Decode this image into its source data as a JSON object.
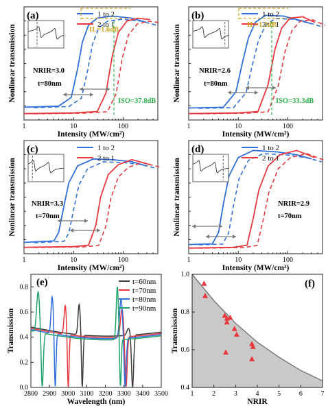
{
  "chart_data": [
    {
      "panel": "(a)",
      "type": "line",
      "xlabel": "Intensity (MW/cm²)",
      "ylabel": "Nonlinear transmission",
      "xscale": "log",
      "xlim": [
        1,
        500
      ],
      "ylim": [
        0,
        0.8
      ],
      "xticks": [
        "1",
        "10",
        "100"
      ],
      "legend": [
        "1 to 2",
        "2 to 1"
      ],
      "legend_position": "top-right",
      "inset": {
        "resonances": [
          0.33,
          0.78
        ],
        "dashed_line": 0.25
      },
      "series": [
        {
          "name": "1 to 2",
          "color": "#2f6fdb",
          "values": [
            [
              1,
              0.09
            ],
            [
              5,
              0.098
            ],
            [
              9,
              0.16
            ],
            [
              12,
              0.36
            ],
            [
              15,
              0.55
            ],
            [
              20,
              0.67
            ],
            [
              30,
              0.72
            ],
            [
              60,
              0.735
            ],
            [
              150,
              0.72
            ],
            [
              300,
              0.69
            ]
          ]
        },
        {
          "name": "2 to 1",
          "color": "#e8383d",
          "values": [
            [
              1,
              0.045
            ],
            [
              10,
              0.05
            ],
            [
              30,
              0.06
            ],
            [
              45,
              0.19
            ],
            [
              60,
              0.45
            ],
            [
              80,
              0.62
            ],
            [
              120,
              0.7
            ],
            [
              200,
              0.72
            ],
            [
              350,
              0.71
            ]
          ]
        }
      ],
      "annotations": [
        "IL=1.6dB",
        "NRIR=3.0",
        "t=80nm",
        "ISO=37.8dB"
      ]
    },
    {
      "panel": "(b)",
      "type": "line",
      "xlabel": "Intensity (MW/cm²)",
      "ylabel": "Nonlinear transmission",
      "xscale": "log",
      "xlim": [
        1,
        500
      ],
      "ylim": [
        0,
        0.8
      ],
      "xticks": [
        "1",
        "10",
        "100"
      ],
      "legend": [
        "1 to 2",
        "2 to 1"
      ],
      "legend_position": "top-right",
      "inset": {
        "resonances": [
          0.3,
          0.78
        ],
        "dashed_line": 0.9
      },
      "series": [
        {
          "name": "1 to 2",
          "color": "#2f6fdb",
          "values": [
            [
              1,
              0.085
            ],
            [
              5,
              0.09
            ],
            [
              9,
              0.2
            ],
            [
              12,
              0.4
            ],
            [
              16,
              0.58
            ],
            [
              22,
              0.69
            ],
            [
              35,
              0.74
            ],
            [
              80,
              0.735
            ],
            [
              200,
              0.7
            ],
            [
              300,
              0.68
            ]
          ]
        },
        {
          "name": "2 to 1",
          "color": "#e8383d",
          "values": [
            [
              1,
              0.045
            ],
            [
              10,
              0.05
            ],
            [
              25,
              0.06
            ],
            [
              40,
              0.25
            ],
            [
              55,
              0.5
            ],
            [
              75,
              0.65
            ],
            [
              110,
              0.72
            ],
            [
              200,
              0.73
            ],
            [
              350,
              0.69
            ]
          ]
        }
      ],
      "annotations": [
        "IL=1.3dB",
        "NRIR=2.6",
        "t=80nm",
        "ISO=33.3dB"
      ]
    },
    {
      "panel": "(c)",
      "type": "line",
      "xlabel": "Intensity (MW/cm²)",
      "ylabel": "Nonlinear transmission",
      "xscale": "log",
      "xlim": [
        1,
        500
      ],
      "ylim": [
        0,
        0.8
      ],
      "xticks": [
        "1",
        "10",
        "100"
      ],
      "legend": [
        "1 to 2",
        "2 to 1"
      ],
      "legend_position": "top-right",
      "inset": {
        "resonances": [
          0.18,
          0.6
        ],
        "dashed_line": 0.12
      },
      "series": [
        {
          "name": "1 to 2",
          "color": "#2f6fdb",
          "values": [
            [
              1,
              0.08
            ],
            [
              4,
              0.09
            ],
            [
              5,
              0.15
            ],
            [
              6.5,
              0.35
            ],
            [
              8,
              0.5
            ],
            [
              12,
              0.62
            ],
            [
              25,
              0.67
            ],
            [
              60,
              0.665
            ],
            [
              150,
              0.65
            ],
            [
              300,
              0.62
            ]
          ]
        },
        {
          "name": "2 to 1",
          "color": "#e8383d",
          "values": [
            [
              1,
              0.045
            ],
            [
              10,
              0.05
            ],
            [
              20,
              0.06
            ],
            [
              28,
              0.2
            ],
            [
              35,
              0.4
            ],
            [
              50,
              0.56
            ],
            [
              80,
              0.63
            ],
            [
              150,
              0.665
            ],
            [
              350,
              0.63
            ]
          ]
        }
      ],
      "annotations": [
        "NRIR=3.3",
        "t=70nm"
      ]
    },
    {
      "panel": "(d)",
      "type": "line",
      "xlabel": "Intensity (MW/cm²)",
      "ylabel": "Nonlinear transmission",
      "xscale": "log",
      "xlim": [
        1,
        500
      ],
      "ylim": [
        0,
        0.8
      ],
      "xticks": [
        "1",
        "10",
        "100"
      ],
      "legend": [
        "1 to 2",
        "2 to 1"
      ],
      "legend_position": "top-right",
      "inset": {
        "resonances": [
          0.2,
          0.65
        ],
        "dashed_line": 0.85
      },
      "series": [
        {
          "name": "1 to 2",
          "color": "#2f6fdb",
          "values": [
            [
              1,
              0.065
            ],
            [
              3,
              0.07
            ],
            [
              4,
              0.15
            ],
            [
              5,
              0.35
            ],
            [
              6.5,
              0.55
            ],
            [
              10,
              0.68
            ],
            [
              20,
              0.73
            ],
            [
              60,
              0.72
            ],
            [
              150,
              0.7
            ],
            [
              300,
              0.67
            ]
          ]
        },
        {
          "name": "2 to 1",
          "color": "#e8383d",
          "values": [
            [
              1,
              0.04
            ],
            [
              8,
              0.045
            ],
            [
              15,
              0.06
            ],
            [
              20,
              0.25
            ],
            [
              26,
              0.45
            ],
            [
              40,
              0.62
            ],
            [
              70,
              0.7
            ],
            [
              150,
              0.73
            ],
            [
              350,
              0.68
            ]
          ]
        }
      ],
      "annotations": [
        "NRIR=2.9",
        "t=70nm"
      ]
    },
    {
      "panel": "(e)",
      "type": "line",
      "xlabel": "Wavelength (nm)",
      "ylabel": "Transmission",
      "xlim": [
        2800,
        3500
      ],
      "ylim": [
        0,
        0.9
      ],
      "xticks": [
        "2800",
        "2900",
        "3000",
        "3100",
        "3200",
        "3300",
        "3400",
        "3500"
      ],
      "yticks": [
        "0.0",
        "0.2",
        "0.4",
        "0.6",
        "0.8"
      ],
      "legend": [
        "t=60nm",
        "t=70nm",
        "t=80nm",
        "t=90nm"
      ],
      "legend_position": "top-right",
      "series": [
        {
          "name": "t=60nm",
          "color": "#3a3a3a",
          "resonances": [
            [
              3060,
              3075,
              0.66
            ],
            [
              3325,
              3345,
              0.47
            ]
          ],
          "baseline": [
            0.48,
            0.44
          ]
        },
        {
          "name": "t=70nm",
          "color": "#e8383d",
          "resonances": [
            [
              2985,
              3000,
              0.65
            ],
            [
              3290,
              3310,
              0.62
            ]
          ],
          "baseline": [
            0.47,
            0.43
          ]
        },
        {
          "name": "t=80nm",
          "color": "#2f6fdb",
          "resonances": [
            [
              2915,
              2930,
              0.72
            ],
            [
              3285,
              3305,
              0.7
            ]
          ],
          "baseline": [
            0.46,
            0.42
          ]
        },
        {
          "name": "t=90nm",
          "color": "#1fa36b",
          "resonances": [
            [
              2840,
              2860,
              0.76
            ],
            [
              3265,
              3280,
              0.8
            ]
          ],
          "baseline": [
            0.45,
            0.41
          ]
        }
      ]
    },
    {
      "panel": "(f)",
      "type": "scatter",
      "xlabel": "NRIR",
      "ylabel": "Transmission",
      "xlim": [
        1,
        7
      ],
      "ylim": [
        0.4,
        1.0
      ],
      "xticks": [
        "1",
        "2",
        "3",
        "4",
        "5",
        "6",
        "7"
      ],
      "yticks": [
        "0.4",
        "0.6",
        "0.8",
        "1.0"
      ],
      "boundary": [
        [
          1,
          1.0
        ],
        [
          2,
          0.86
        ],
        [
          3,
          0.74
        ],
        [
          4,
          0.64
        ],
        [
          5,
          0.56
        ],
        [
          6,
          0.49
        ],
        [
          7,
          0.435
        ]
      ],
      "points": [
        [
          1.55,
          0.95
        ],
        [
          1.6,
          0.885
        ],
        [
          2.5,
          0.78
        ],
        [
          2.6,
          0.765
        ],
        [
          2.6,
          0.745
        ],
        [
          2.75,
          0.77
        ],
        [
          2.95,
          0.71
        ],
        [
          3.05,
          0.68
        ],
        [
          3.75,
          0.63
        ],
        [
          3.8,
          0.615
        ],
        [
          3.75,
          0.55
        ],
        [
          2.55,
          0.585
        ]
      ]
    }
  ],
  "colors": {
    "blue": "#2f6fdb",
    "red": "#e8383d",
    "black": "#3a3a3a",
    "green": "#1fa36b",
    "gold": "#d1a21c",
    "isoGreen": "#2db34a"
  }
}
